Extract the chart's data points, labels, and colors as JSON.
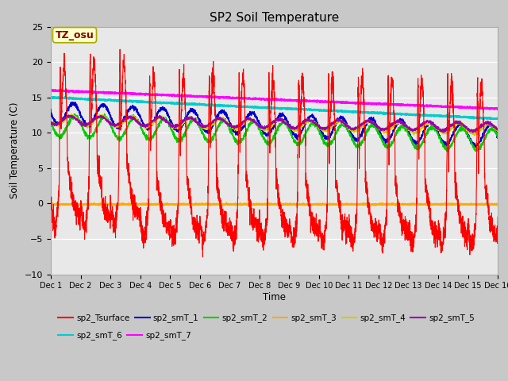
{
  "title": "SP2 Soil Temperature",
  "xlabel": "Time",
  "ylabel": "Soil Temperature (C)",
  "ylim": [
    -10,
    25
  ],
  "xlim": [
    0,
    15
  ],
  "xtick_labels": [
    "Dec 1",
    "Dec 2",
    "Dec 3",
    "Dec 4",
    "Dec 5",
    "Dec 6",
    "Dec 7",
    "Dec 8",
    "Dec 9",
    "Dec 10",
    "Dec 11",
    "Dec 12",
    "Dec 13",
    "Dec 14",
    "Dec 15",
    "Dec 16"
  ],
  "ytick_values": [
    -10,
    -5,
    0,
    5,
    10,
    15,
    20,
    25
  ],
  "fig_bg_color": "#c8c8c8",
  "plot_bg_color": "#e8e8e8",
  "annotation_text": "TZ_osu",
  "annotation_color": "#880000",
  "annotation_bg": "#ffffcc",
  "annotation_border": "#aaaa00",
  "series": {
    "sp2_Tsurface": {
      "color": "#ff0000",
      "lw": 0.8
    },
    "sp2_smT_1": {
      "color": "#0000cc",
      "lw": 1.0
    },
    "sp2_smT_2": {
      "color": "#00cc00",
      "lw": 1.0
    },
    "sp2_smT_3": {
      "color": "#ffaa00",
      "lw": 1.5
    },
    "sp2_smT_4": {
      "color": "#cccc00",
      "lw": 1.0
    },
    "sp2_smT_5": {
      "color": "#9900aa",
      "lw": 1.0
    },
    "sp2_smT_6": {
      "color": "#00cccc",
      "lw": 1.5
    },
    "sp2_smT_7": {
      "color": "#ff00ff",
      "lw": 1.5
    }
  },
  "legend_row1": [
    "sp2_Tsurface",
    "sp2_smT_1",
    "sp2_smT_2",
    "sp2_smT_3",
    "sp2_smT_4",
    "sp2_smT_5"
  ],
  "legend_row2": [
    "sp2_smT_6",
    "sp2_smT_7"
  ]
}
